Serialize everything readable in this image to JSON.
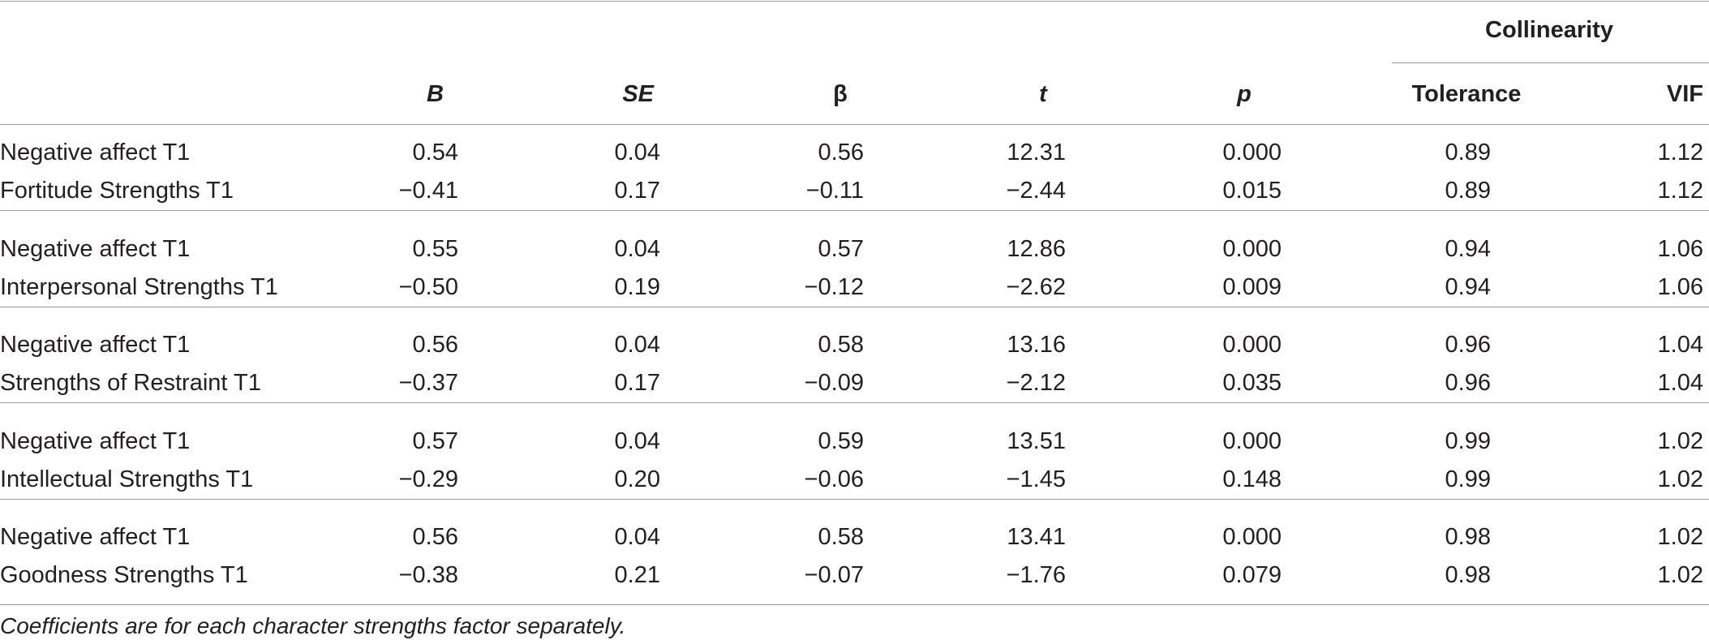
{
  "table": {
    "group_header": "Collinearity",
    "columns": [
      {
        "label": "B",
        "italic": true
      },
      {
        "label": "SE",
        "italic": true
      },
      {
        "label": "β",
        "italic": false
      },
      {
        "label": "t",
        "italic": true
      },
      {
        "label": "p",
        "italic": true
      },
      {
        "label": "Tolerance",
        "italic": false
      },
      {
        "label": "VIF",
        "italic": false
      }
    ],
    "groups": [
      [
        {
          "label": "Negative affect T1",
          "values": [
            "0.54",
            "0.04",
            "0.56",
            "12.31",
            "0.000",
            "0.89",
            "1.12"
          ]
        },
        {
          "label": "Fortitude Strengths T1",
          "values": [
            "−0.41",
            "0.17",
            "−0.11",
            "−2.44",
            "0.015",
            "0.89",
            "1.12"
          ]
        }
      ],
      [
        {
          "label": "Negative affect T1",
          "values": [
            "0.55",
            "0.04",
            "0.57",
            "12.86",
            "0.000",
            "0.94",
            "1.06"
          ]
        },
        {
          "label": "Interpersonal Strengths T1",
          "values": [
            "−0.50",
            "0.19",
            "−0.12",
            "−2.62",
            "0.009",
            "0.94",
            "1.06"
          ]
        }
      ],
      [
        {
          "label": "Negative affect T1",
          "values": [
            "0.56",
            "0.04",
            "0.58",
            "13.16",
            "0.000",
            "0.96",
            "1.04"
          ]
        },
        {
          "label": "Strengths of Restraint T1",
          "values": [
            "−0.37",
            "0.17",
            "−0.09",
            "−2.12",
            "0.035",
            "0.96",
            "1.04"
          ]
        }
      ],
      [
        {
          "label": "Negative affect T1",
          "values": [
            "0.57",
            "0.04",
            "0.59",
            "13.51",
            "0.000",
            "0.99",
            "1.02"
          ]
        },
        {
          "label": "Intellectual Strengths T1",
          "values": [
            "−0.29",
            "0.20",
            "−0.06",
            "−1.45",
            "0.148",
            "0.99",
            "1.02"
          ]
        }
      ],
      [
        {
          "label": "Negative affect T1",
          "values": [
            "0.56",
            "0.04",
            "0.58",
            "13.41",
            "0.000",
            "0.98",
            "1.02"
          ]
        },
        {
          "label": "Goodness Strengths T1",
          "values": [
            "−0.38",
            "0.21",
            "−0.07",
            "−1.76",
            "0.079",
            "0.98",
            "1.02"
          ]
        }
      ]
    ],
    "footnote": "Coefficients are for each character strengths factor separately."
  }
}
